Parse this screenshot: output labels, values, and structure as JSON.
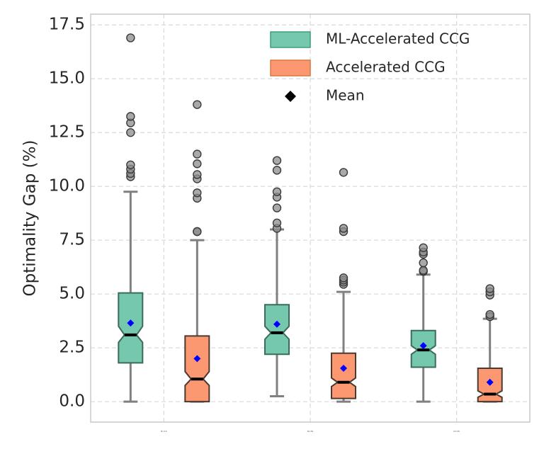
{
  "chart_data": {
    "type": "box",
    "title": "",
    "xlabel": "",
    "ylabel": "Optimality Gap (%)",
    "ylim": [
      -0.95,
      18.0
    ],
    "yticks": [
      "0.0",
      "2.5",
      "5.0",
      "7.5",
      "10.0",
      "12.5",
      "15.0",
      "17.5"
    ],
    "grid": true,
    "legend_position": "top-right",
    "categories": [
      "N=15",
      "N=30",
      "N=45"
    ],
    "series": [
      {
        "name": "ML-Accelerated CCG",
        "color": "#66c2a5",
        "edge_color": "#3a6b5b",
        "boxes": [
          {
            "whisker_low": 0.0,
            "q1": 1.8,
            "median": 3.1,
            "q3": 5.05,
            "whisker_high": 9.75,
            "notch_low": 2.75,
            "notch_high": 3.5,
            "mean": 3.65,
            "outliers": [
              10.45,
              10.6,
              10.8,
              11.0,
              12.5,
              12.95,
              13.25,
              16.9
            ]
          },
          {
            "whisker_low": 0.25,
            "q1": 2.2,
            "median": 3.2,
            "q3": 4.5,
            "whisker_high": 8.0,
            "notch_low": 2.9,
            "notch_high": 3.5,
            "mean": 3.6,
            "outliers": [
              8.05,
              8.3,
              9.0,
              9.5,
              9.75,
              10.75,
              11.2
            ]
          },
          {
            "whisker_low": 0.0,
            "q1": 1.6,
            "median": 2.4,
            "q3": 3.3,
            "whisker_high": 5.9,
            "notch_low": 2.2,
            "notch_high": 2.6,
            "mean": 2.6,
            "outliers": [
              6.05,
              6.1,
              6.45,
              6.85,
              6.95,
              7.15
            ]
          }
        ]
      },
      {
        "name": "Accelerated CCG",
        "color": "#fc8d62",
        "edge_color": "#4a3a30",
        "boxes": [
          {
            "whisker_low": 0.0,
            "q1": 0.0,
            "median": 1.05,
            "q3": 3.05,
            "whisker_high": 7.5,
            "notch_low": 0.75,
            "notch_high": 1.4,
            "mean": 2.0,
            "outliers": [
              7.9,
              7.9,
              9.45,
              9.7,
              10.35,
              10.55,
              11.05,
              11.5,
              13.8
            ]
          },
          {
            "whisker_low": 0.0,
            "q1": 0.15,
            "median": 0.9,
            "q3": 2.25,
            "whisker_high": 5.1,
            "notch_low": 0.7,
            "notch_high": 1.1,
            "mean": 1.55,
            "outliers": [
              5.45,
              5.55,
              5.65,
              5.75,
              7.9,
              8.05,
              10.65
            ]
          },
          {
            "whisker_low": 0.0,
            "q1": 0.0,
            "median": 0.35,
            "q3": 1.55,
            "whisker_high": 3.85,
            "notch_low": 0.2,
            "notch_high": 0.5,
            "mean": 0.9,
            "outliers": [
              3.95,
              4.05,
              4.95,
              5.1,
              5.25
            ]
          }
        ]
      }
    ],
    "legend": [
      {
        "label": "ML-Accelerated CCG",
        "kind": "patch",
        "color": "#66c2a5"
      },
      {
        "label": "Accelerated CCG",
        "kind": "patch",
        "color": "#fc8d62"
      },
      {
        "label": "Mean",
        "kind": "diamond",
        "color": "#000000"
      }
    ],
    "mean_marker_color": "#0000ff",
    "median_color": "#000000",
    "whisker_color": "#808080"
  }
}
